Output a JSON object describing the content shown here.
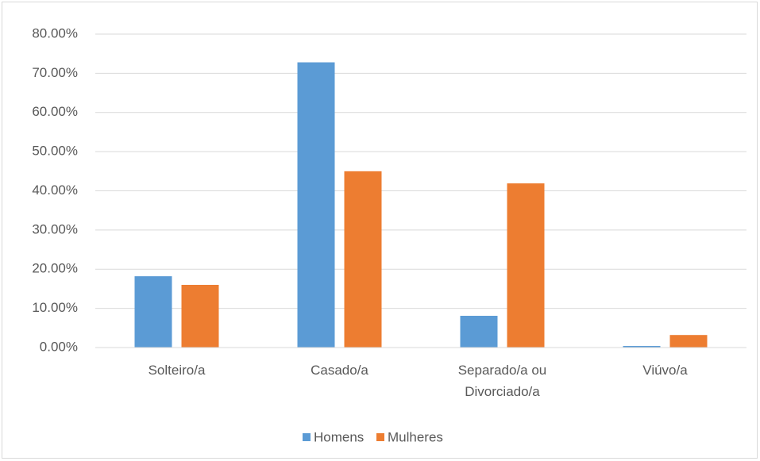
{
  "chart_data": {
    "type": "bar",
    "categories": [
      "Solteiro/a",
      "Casado/a",
      "Separado/a ou Divorciado/a",
      "Viúvo/a"
    ],
    "series": [
      {
        "name": "Homens",
        "color": "#5b9bd5",
        "values": [
          18.2,
          72.8,
          8.1,
          0.4
        ]
      },
      {
        "name": "Mulheres",
        "color": "#ed7d31",
        "values": [
          16.0,
          45.0,
          41.9,
          3.2
        ]
      }
    ],
    "ylim": [
      0,
      80
    ],
    "yticks": [
      {
        "value": 0,
        "label": "0.00%"
      },
      {
        "value": 10,
        "label": "10.00%"
      },
      {
        "value": 20,
        "label": "20.00%"
      },
      {
        "value": 30,
        "label": "30.00%"
      },
      {
        "value": 40,
        "label": "40.00%"
      },
      {
        "value": 50,
        "label": "50.00%"
      },
      {
        "value": 60,
        "label": "60.00%"
      },
      {
        "value": 70,
        "label": "70.00%"
      },
      {
        "value": 80,
        "label": "80.00%"
      }
    ],
    "grid": true,
    "legend": "bottom"
  }
}
